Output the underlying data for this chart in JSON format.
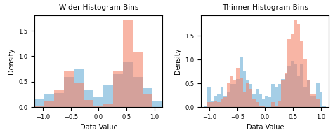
{
  "title_left": "Wider Histogram Bins",
  "title_right": "Thinner Histogram Bins",
  "xlabel": "Data Value",
  "ylabel": "Density",
  "color_blue": "#6aaed6",
  "color_red": "#f4846a",
  "alpha": 0.6,
  "seed": 0,
  "n_blue": 500,
  "n_red": 500,
  "bins_wide": 13,
  "bins_thin": 40,
  "xlim": [
    -1.15,
    1.15
  ],
  "figsize": [
    4.74,
    1.93
  ],
  "dpi": 100
}
